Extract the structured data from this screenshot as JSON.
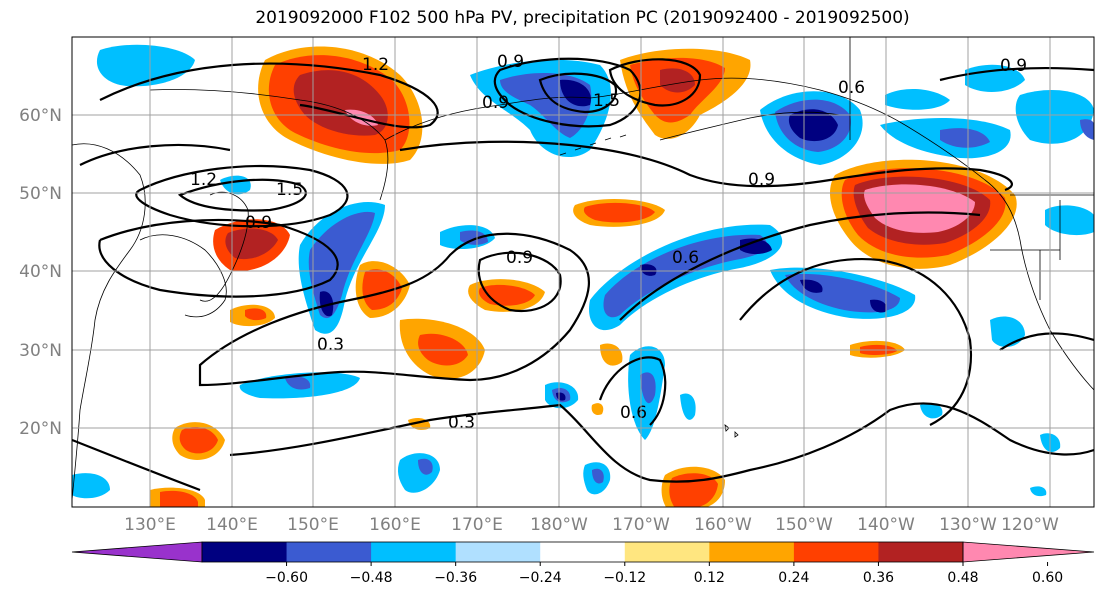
{
  "title": "2019092000 F102 500 hPa PV, precipitation PC (2019092400 - 2019092500)",
  "map": {
    "lat_labels": [
      "60°N",
      "50°N",
      "40°N",
      "30°N",
      "20°N"
    ],
    "lon_labels": [
      "130°E",
      "140°E",
      "150°E",
      "160°E",
      "170°E",
      "180°W",
      "170°W",
      "160°W",
      "150°W",
      "140°W",
      "130°W",
      "120°W"
    ],
    "contour_labels": [
      "1.2",
      "0.9",
      "0.9",
      "1.5",
      "0.6",
      "1.2",
      "1.5",
      "0.9",
      "0.9",
      "0.9",
      "0.6",
      "0.3",
      "0.3",
      "0.6",
      "0.9"
    ],
    "label_color": "#808080"
  },
  "colorbar": {
    "colors": [
      "#9932cc",
      "#000080",
      "#3b5bd1",
      "#00bfff",
      "#b0e0ff",
      "#ffffff",
      "#ffe680",
      "#ffa500",
      "#ff4000",
      "#b22222",
      "#ff88b0"
    ],
    "tick_labels": [
      "−0.60",
      "−0.48",
      "−0.36",
      "−0.24",
      "−0.12",
      "0.12",
      "0.24",
      "0.36",
      "0.48",
      "0.60"
    ]
  }
}
